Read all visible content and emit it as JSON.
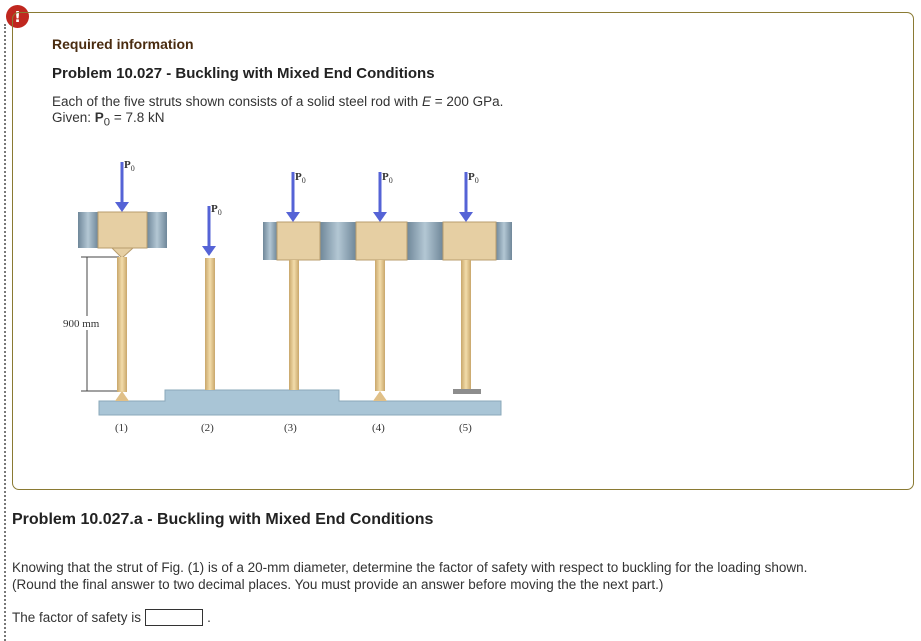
{
  "alert": {
    "symbol": "!"
  },
  "info": {
    "required_label": "Required information",
    "problem_title": "Problem 10.027 - Buckling with Mixed End Conditions",
    "description_prefix": "Each of the five struts shown consists of a solid steel rod with ",
    "description_var": "E",
    "description_suffix": " = 200 GPa.",
    "given_prefix": "Given: ",
    "given_var": "P",
    "given_sub": "0",
    "given_suffix": " = 7.8 kN"
  },
  "figure": {
    "dimension_label": "900 mm",
    "load_label": "P",
    "load_sub": "0",
    "strut_labels": [
      "(1)",
      "(2)",
      "(3)",
      "(4)",
      "(5)"
    ]
  },
  "part": {
    "title": "Problem 10.027.a - Buckling with Mixed End Conditions",
    "question_line1": "Knowing that the strut of Fig. (1) is of a 20-mm diameter, determine the factor of safety with respect to buckling for the loading shown.",
    "question_line2": "(Round the final answer to two decimal places. You must provide an answer before moving the the next part.)",
    "answer_label": "The factor of safety is",
    "answer_value": "",
    "answer_suffix": "."
  },
  "colors": {
    "alert": "#c0271f",
    "card_border": "#8a7a33",
    "rod": "#e2c690",
    "block": "#e6cfa3",
    "guide": "#8fa6b8",
    "base": "#a9c5d6",
    "arrow": "#5563d6"
  }
}
